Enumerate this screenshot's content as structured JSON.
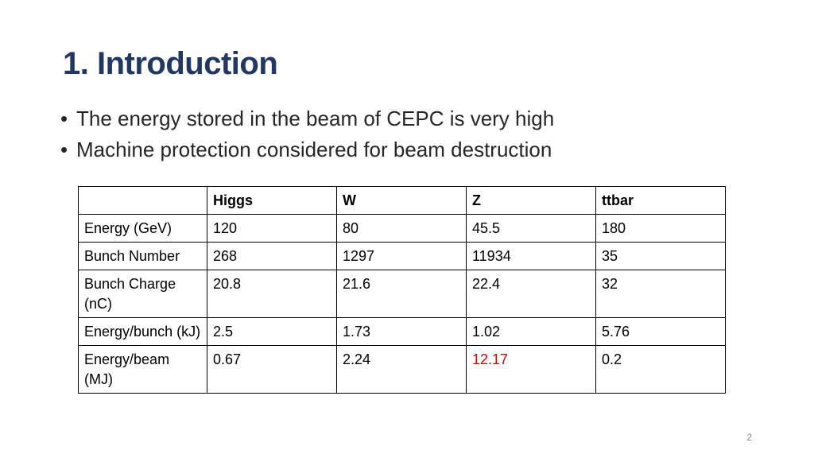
{
  "slide": {
    "title": "1. Introduction",
    "bullets": [
      "The energy stored in the beam of CEPC is very high",
      "Machine protection considered for beam destruction"
    ],
    "page_number": "2"
  },
  "table": {
    "headers": [
      "",
      "Higgs",
      "W",
      "Z",
      "ttbar"
    ],
    "rows": [
      [
        "Energy (GeV)",
        "120",
        "80",
        "45.5",
        "180"
      ],
      [
        "Bunch Number",
        "268",
        "1297",
        "11934",
        "35"
      ],
      [
        "Bunch Charge (nC)",
        "20.8",
        "21.6",
        "22.4",
        "32"
      ],
      [
        "Energy/bunch (kJ)",
        "2.5",
        "1.73",
        "1.02",
        "5.76"
      ],
      [
        "Energy/beam (MJ)",
        "0.67",
        "2.24",
        "12.17",
        "0.2"
      ]
    ],
    "highlight_color": "#e00000"
  }
}
